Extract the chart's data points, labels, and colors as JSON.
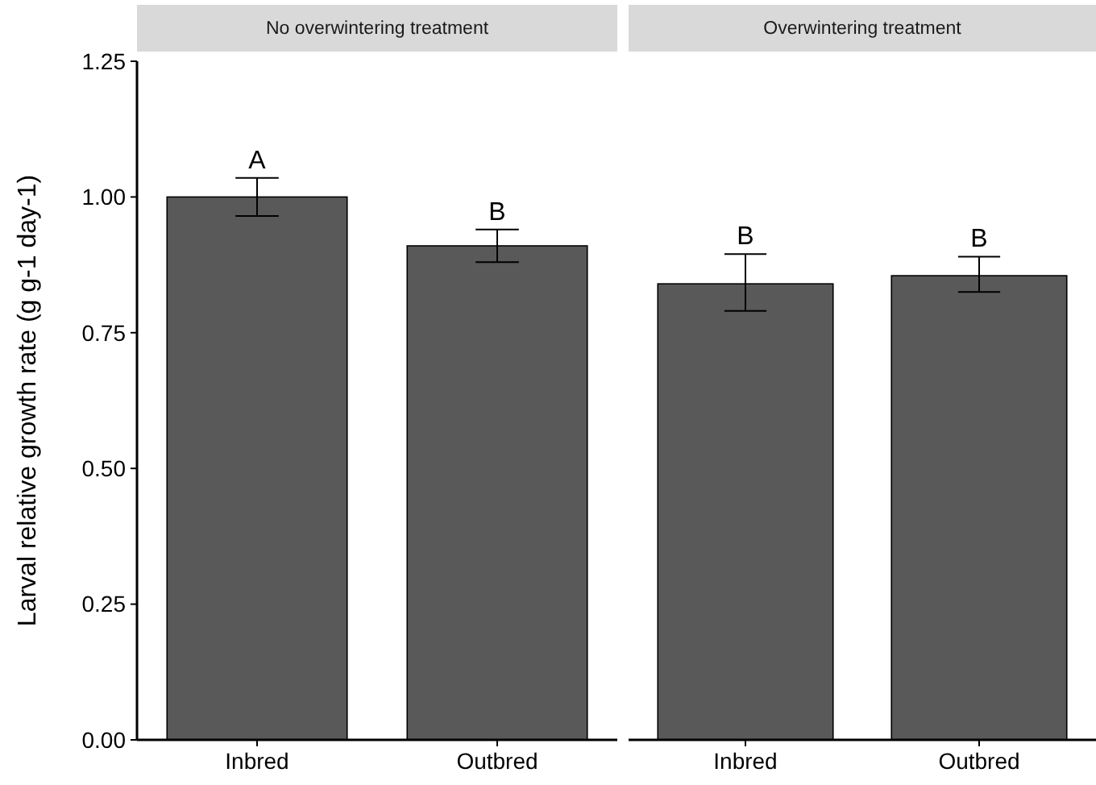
{
  "chart_data": [
    {
      "type": "bar",
      "title": "No overwintering treatment",
      "ylabel": "Larval relative growth rate (g g-1 day-1)",
      "categories": [
        "Inbred",
        "Outbred"
      ],
      "values": [
        1.0,
        0.91
      ],
      "errors": [
        [
          0.965,
          1.035
        ],
        [
          0.88,
          0.94
        ]
      ],
      "color": "#595959",
      "ylim": [
        0,
        1.25
      ],
      "yticks": [
        {
          "value": 0,
          "label": "0.00"
        },
        {
          "value": 0.25,
          "label": "0.25"
        },
        {
          "value": 0.5,
          "label": "0.50"
        },
        {
          "value": 0.75,
          "label": "0.75"
        },
        {
          "value": 1,
          "label": "1.00"
        },
        {
          "value": 1.25,
          "label": "1.25"
        }
      ],
      "annotations": [
        {
          "text": "A",
          "x": "Inbred",
          "y": 1.035
        },
        {
          "text": "B",
          "x": "Outbred",
          "y": 0.94
        }
      ]
    },
    {
      "type": "bar",
      "title": "Overwintering treatment",
      "categories": [
        "Inbred",
        "Outbred"
      ],
      "values": [
        0.84,
        0.855
      ],
      "errors": [
        [
          0.79,
          0.895
        ],
        [
          0.825,
          0.89
        ]
      ],
      "color": "#595959",
      "ylim": [
        0,
        1.25
      ],
      "tick_labels": "x",
      "annotations": [
        {
          "text": "B",
          "x": "Inbred",
          "y": 0.895
        },
        {
          "text": "B",
          "x": "Outbred",
          "y": 0.89
        }
      ]
    }
  ]
}
